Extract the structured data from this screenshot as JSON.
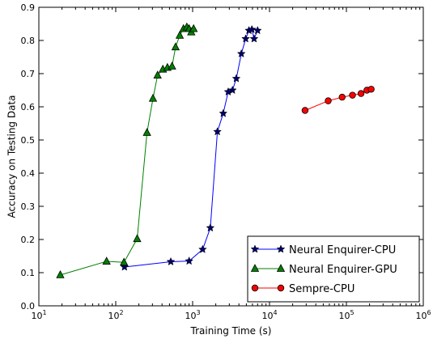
{
  "chart_data": {
    "type": "line",
    "xlabel": "Training Time (s)",
    "ylabel": "Accuracy on Testing Data",
    "xscale": "log",
    "xlim": [
      10,
      1000000
    ],
    "ylim": [
      0.0,
      0.9
    ],
    "grid": false,
    "legend_position": "bottom-right",
    "x_tick_labels": [
      {
        "base": "10",
        "exp": "1"
      },
      {
        "base": "10",
        "exp": "2"
      },
      {
        "base": "10",
        "exp": "3"
      },
      {
        "base": "10",
        "exp": "4"
      },
      {
        "base": "10",
        "exp": "5"
      },
      {
        "base": "10",
        "exp": "6"
      }
    ],
    "y_tick_labels": [
      "0.0",
      "0.1",
      "0.2",
      "0.3",
      "0.4",
      "0.5",
      "0.6",
      "0.7",
      "0.8",
      "0.9"
    ],
    "series": [
      {
        "name": "Neural Enquirer-CPU",
        "color": "#0000ff",
        "marker": "star",
        "x": [
          130,
          520,
          900,
          1350,
          1700,
          2100,
          2500,
          2900,
          3300,
          3700,
          4300,
          4900,
          5400,
          5900,
          6300,
          7000
        ],
        "y": [
          0.117,
          0.133,
          0.135,
          0.17,
          0.235,
          0.525,
          0.58,
          0.645,
          0.65,
          0.685,
          0.76,
          0.805,
          0.83,
          0.833,
          0.805,
          0.83
        ]
      },
      {
        "name": "Neural Enquirer-GPU",
        "color": "#008000",
        "marker": "triangle",
        "x": [
          19,
          76,
          128,
          190,
          255,
          305,
          350,
          410,
          470,
          540,
          600,
          680,
          760,
          840,
          900,
          960,
          1030
        ],
        "y": [
          0.093,
          0.134,
          0.131,
          0.202,
          0.522,
          0.625,
          0.695,
          0.713,
          0.718,
          0.722,
          0.78,
          0.815,
          0.835,
          0.84,
          0.835,
          0.825,
          0.835
        ]
      },
      {
        "name": "Sempre-CPU",
        "color": "#ff0000",
        "marker": "circle",
        "x": [
          29000,
          58000,
          88000,
          120000,
          155000,
          185000,
          210000
        ],
        "y": [
          0.589,
          0.618,
          0.629,
          0.635,
          0.64,
          0.65,
          0.653
        ]
      }
    ]
  }
}
